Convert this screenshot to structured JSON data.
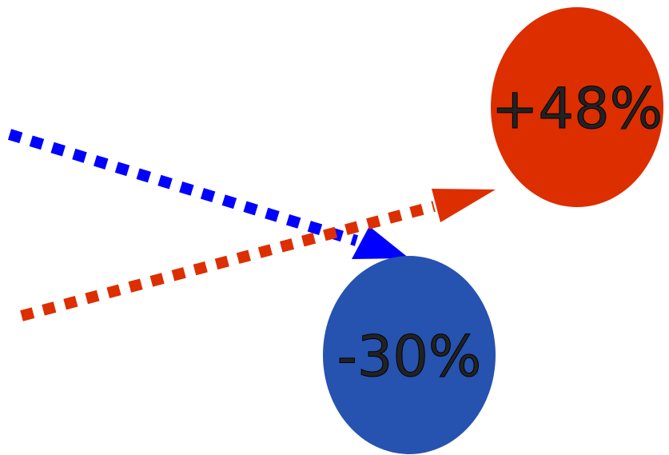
{
  "colors": {
    "up": "#dd2e00",
    "down_bubble": "#2652b0",
    "down_arrow": "#0000ff"
  },
  "bubbles": {
    "up": {
      "label": "+48%"
    },
    "down": {
      "label": "-30%"
    }
  },
  "arrows": {
    "down": {
      "style": "dotted",
      "direction": "down-right"
    },
    "up": {
      "style": "dotted",
      "direction": "up-right"
    }
  }
}
